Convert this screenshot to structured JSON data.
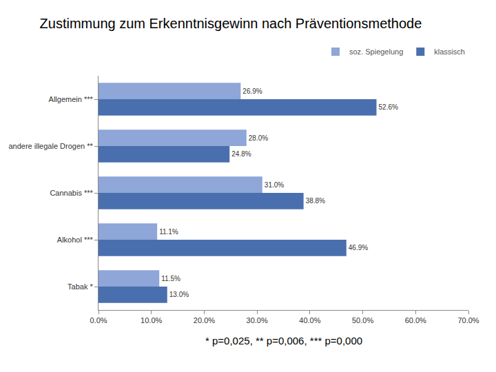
{
  "chart_data": {
    "type": "bar",
    "title": "Zustimmung zum Erkenntnisgewinn nach Präventionsmethode",
    "orientation": "horizontal",
    "categories": [
      "Allgemein ***",
      "andere illegale Drogen **",
      "Cannabis ***",
      "Alkohol ***",
      "Tabak *"
    ],
    "series": [
      {
        "name": "soz. Spiegelung",
        "color": "#8ea6d8",
        "values": [
          26.9,
          28.0,
          31.0,
          11.1,
          11.5
        ],
        "value_labels": [
          "26.9%",
          "28.0%",
          "31.0%",
          "11.1%",
          "11.5%"
        ]
      },
      {
        "name": "klassisch",
        "color": "#4a6fae",
        "values": [
          52.6,
          24.8,
          38.8,
          46.9,
          13.0
        ],
        "value_labels": [
          "52.6%",
          "24.8%",
          "38.8%",
          "46.9%",
          "13.0%"
        ]
      }
    ],
    "xlim": [
      0,
      70
    ],
    "xticks": [
      {
        "value": 0,
        "label": "0.0%"
      },
      {
        "value": 10,
        "label": "10.0%"
      },
      {
        "value": 20,
        "label": "20.0%"
      },
      {
        "value": 30,
        "label": "30.0%"
      },
      {
        "value": 40,
        "label": "40.0%"
      },
      {
        "value": 50,
        "label": "50.0%"
      },
      {
        "value": 60,
        "label": "60.0%"
      },
      {
        "value": 70,
        "label": "70.0%"
      }
    ],
    "grid": false,
    "legend": "top-right",
    "data_labels": true,
    "annotations": [
      "* p=0,025, ** p=0,006, *** p=0,000"
    ]
  }
}
